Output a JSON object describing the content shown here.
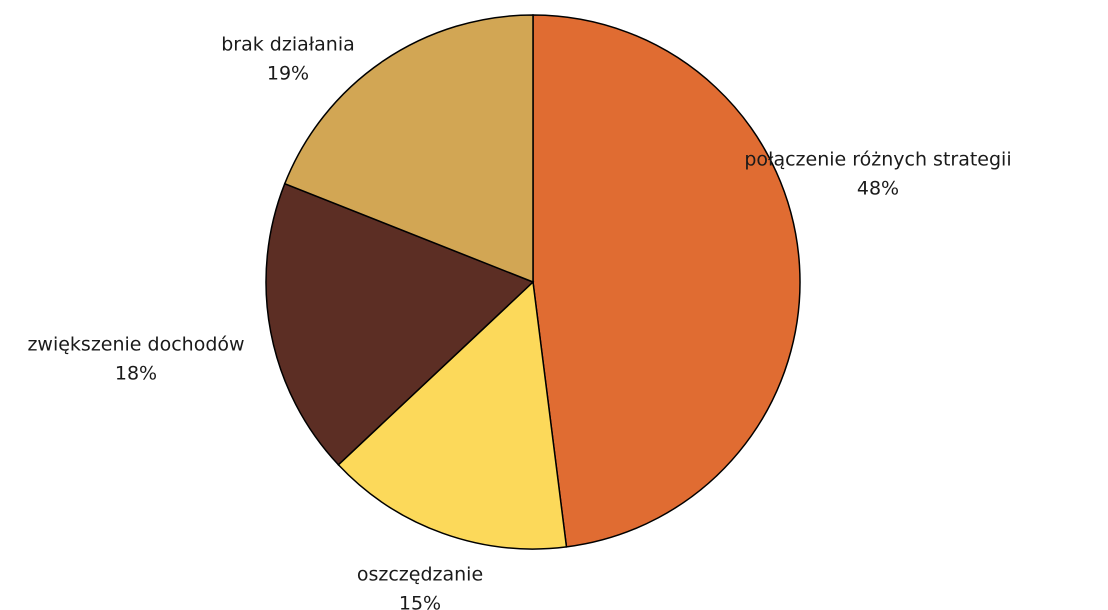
{
  "chart_data": {
    "type": "pie",
    "categories": [
      "połączenie różnych strategii",
      "oszczędzanie",
      "zwiększenie dochodów",
      "brak działania"
    ],
    "values": [
      48,
      15,
      18,
      19
    ],
    "value_labels": [
      "48%",
      "15%",
      "18%",
      "19%"
    ],
    "colors": [
      "#e06c32",
      "#fcd95a",
      "#5c2e24",
      "#d2a654"
    ]
  }
}
